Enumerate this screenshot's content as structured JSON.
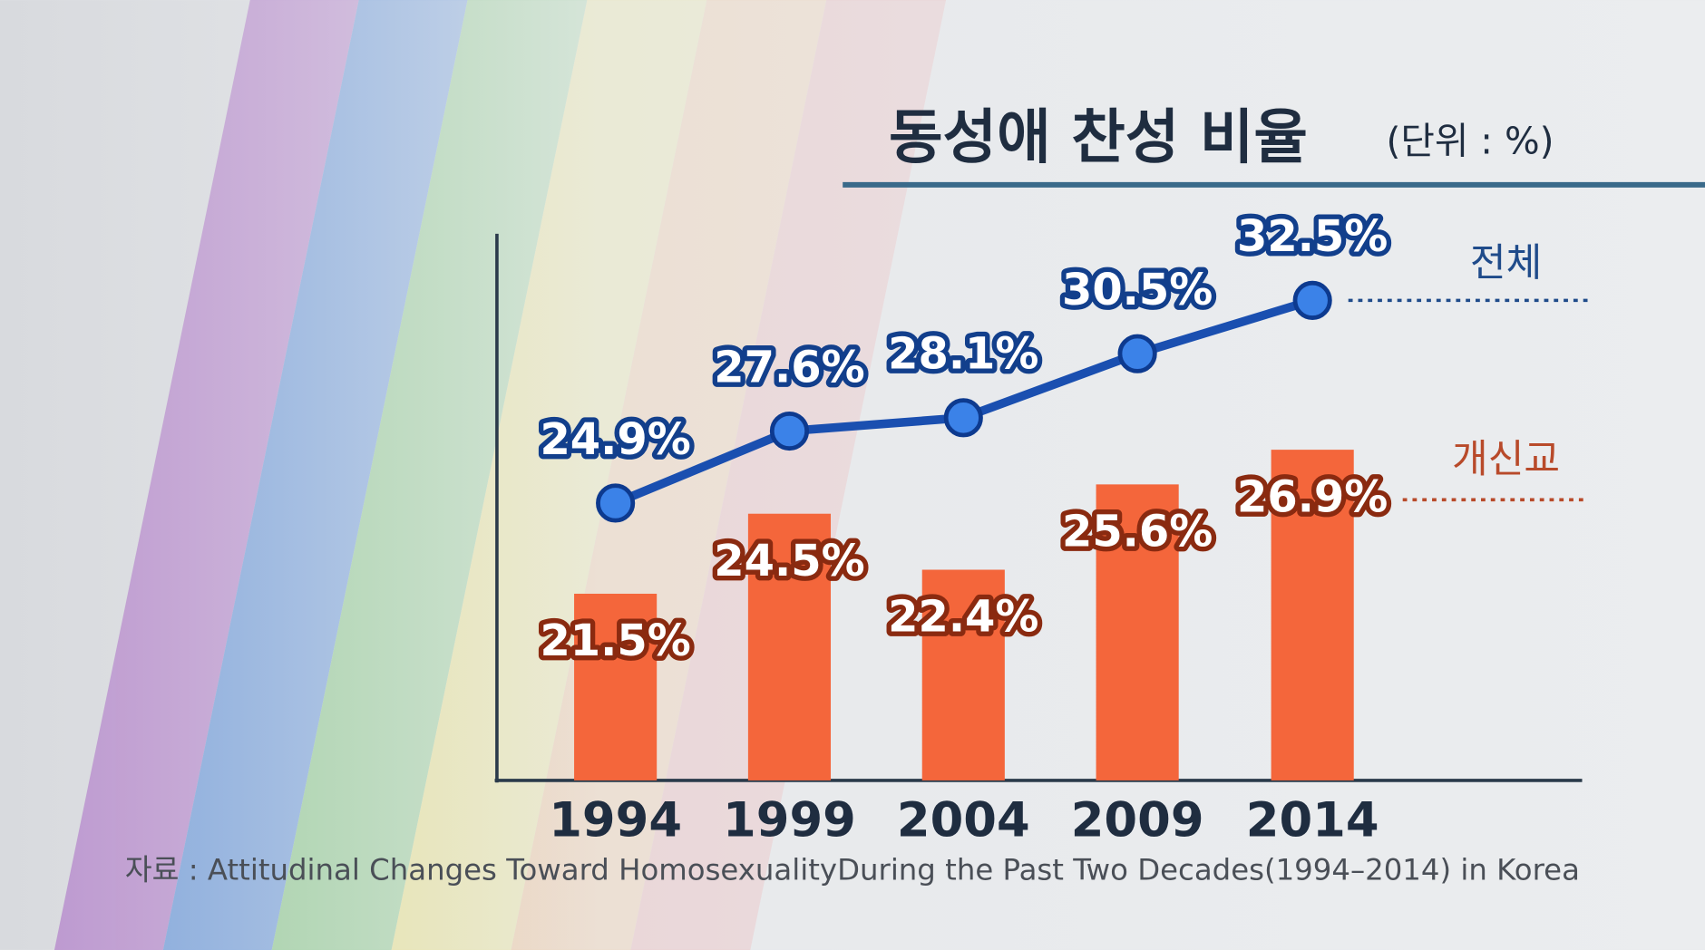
{
  "chart_data": {
    "type": "combo",
    "title": "동성애 찬성 비율",
    "subtitle": "(단위 : %)",
    "categories": [
      "1994",
      "1999",
      "2004",
      "2009",
      "2014"
    ],
    "ylim": [
      14.5,
      35
    ],
    "series": [
      {
        "name": "전체",
        "type": "line",
        "color": "#1a4fb0",
        "values": [
          24.9,
          27.6,
          28.1,
          30.5,
          32.5
        ],
        "value_labels": [
          "24.9%",
          "27.6%",
          "28.1%",
          "30.5%",
          "32.5%"
        ]
      },
      {
        "name": "개신교",
        "type": "bar",
        "color": "#f4663b",
        "values": [
          21.5,
          24.5,
          22.4,
          25.6,
          26.9
        ],
        "value_labels": [
          "21.5%",
          "24.5%",
          "22.4%",
          "25.6%",
          "26.9%"
        ]
      }
    ],
    "source": "자료 : Attitudinal Changes Toward HomosexualityDuring the Past Two Decades(1994–2014) in Korea"
  }
}
